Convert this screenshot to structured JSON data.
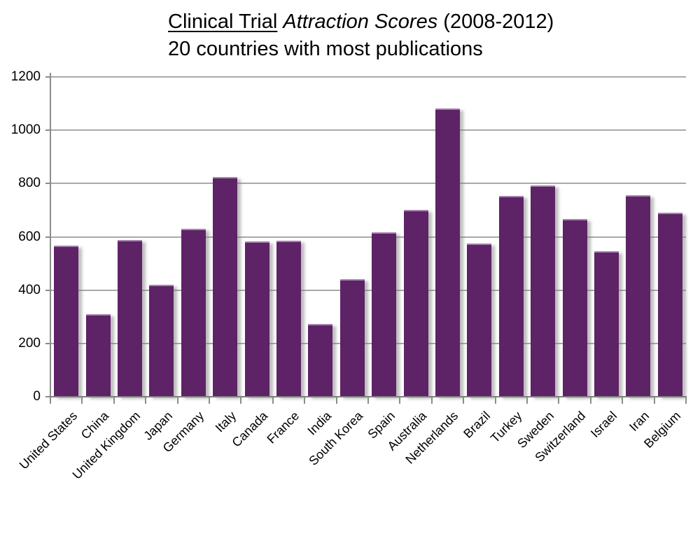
{
  "title": {
    "part1": "Clinical Trial",
    "part2": "Attraction Scores",
    "part3": "(2008-2012)",
    "subtitle": "20 countries with most publications"
  },
  "chart_data": {
    "type": "bar",
    "title": "Clinical Trial Attraction Scores (2008-2012)",
    "subtitle": "20 countries with most publications",
    "categories": [
      "United States",
      "China",
      "United Kingdom",
      "Japan",
      "Germany",
      "Italy",
      "Canada",
      "France",
      "India",
      "South Korea",
      "Spain",
      "Australia",
      "Netherlands",
      "Brazil",
      "Turkey",
      "Sweden",
      "Switzerland",
      "Israel",
      "Iran",
      "Belgium"
    ],
    "values": [
      566,
      310,
      588,
      419,
      629,
      824,
      584,
      586,
      274,
      442,
      617,
      701,
      1083,
      574,
      754,
      793,
      668,
      545,
      756,
      690
    ],
    "xlabel": "",
    "ylabel": "",
    "ylim": [
      0,
      1200
    ],
    "yticks": [
      0,
      200,
      400,
      600,
      800,
      1000,
      1200
    ],
    "grid": true,
    "legend": "none",
    "bar_color": "#5E2267",
    "bar_highlight_color": "#A584AC",
    "gridline_color": "#A6A6A6",
    "axis_color": "#7F7F7F",
    "text_color": "#000000",
    "background_color": "#FFFFFF"
  }
}
